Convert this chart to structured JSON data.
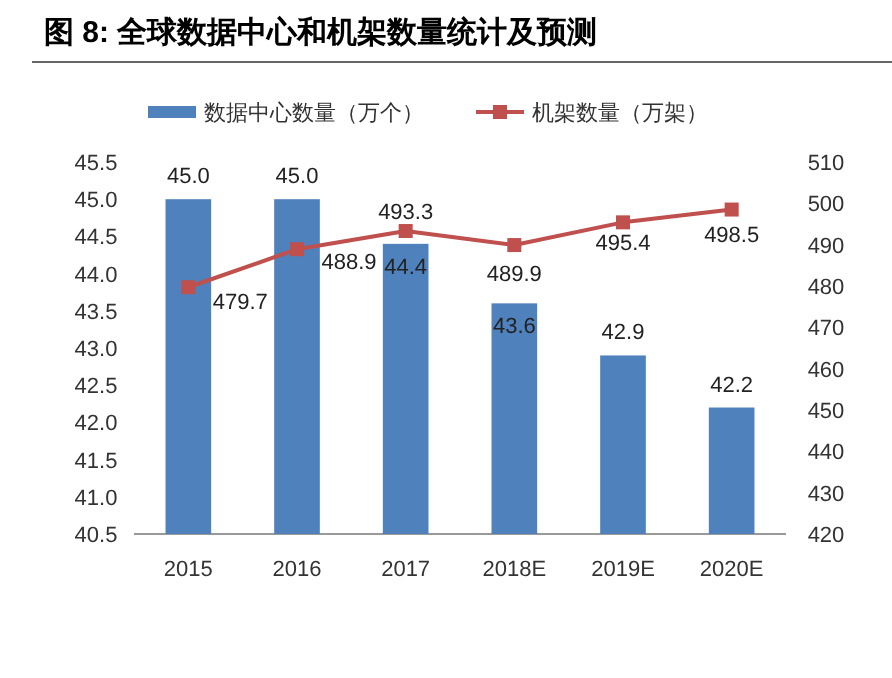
{
  "chart_data": {
    "type": "bar",
    "title": "图 8:  全球数据中心和机架数量统计及预测",
    "categories": [
      "2015",
      "2016",
      "2017",
      "2018E",
      "2019E",
      "2020E"
    ],
    "series": [
      {
        "name": "数据中心数量（万个）",
        "color": "#4f81bd",
        "values": [
          45.0,
          45.0,
          44.4,
          43.6,
          42.9,
          42.2
        ],
        "value_labels": [
          "45.0",
          "45.0",
          "44.4",
          "43.6",
          "42.9",
          "42.2"
        ]
      },
      {
        "name": "机架数量（万架）",
        "type": "line",
        "axis": "y2",
        "color": "#c0504d",
        "marker": "square",
        "values": [
          479.7,
          488.9,
          493.3,
          489.9,
          495.4,
          498.5
        ],
        "value_labels": [
          "479.7",
          "488.9",
          "493.3",
          "489.9",
          "495.4",
          "498.5"
        ]
      }
    ],
    "ylim": [
      40.5,
      45.5
    ],
    "yticks": [
      40.5,
      {
        "value": 41,
        "label": "41.0"
      },
      41.5,
      {
        "value": 42,
        "label": "42.0"
      },
      42.5,
      {
        "value": 43,
        "label": "43.0"
      },
      43.5,
      {
        "value": 44,
        "label": "44.0"
      },
      44.5,
      {
        "value": 45,
        "label": "45.0"
      },
      45.5
    ],
    "y2lim": [
      420,
      510
    ],
    "y2ticks": [
      420,
      430,
      440,
      450,
      460,
      470,
      480,
      490,
      500,
      510
    ],
    "legend": "top",
    "grid": false
  }
}
